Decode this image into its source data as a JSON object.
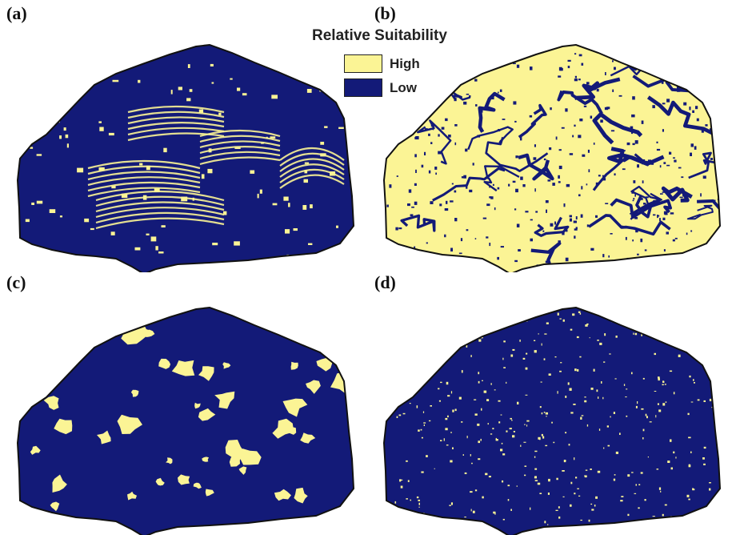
{
  "panels": [
    {
      "label": "(a)",
      "high_fraction": 0.14,
      "pattern": "ridges"
    },
    {
      "label": "(b)",
      "high_fraction": 0.62,
      "pattern": "widespread"
    },
    {
      "label": "(c)",
      "high_fraction": 0.18,
      "pattern": "blocky"
    },
    {
      "label": "(d)",
      "high_fraction": 0.08,
      "pattern": "speckled"
    }
  ],
  "legend": {
    "title": "Relative Suitability",
    "items": [
      {
        "label": "High",
        "color": "#fbf495"
      },
      {
        "label": "Low",
        "color": "#131a78"
      }
    ]
  },
  "colors": {
    "high": "#fbf495",
    "low": "#131a78",
    "outline": "#111111"
  }
}
